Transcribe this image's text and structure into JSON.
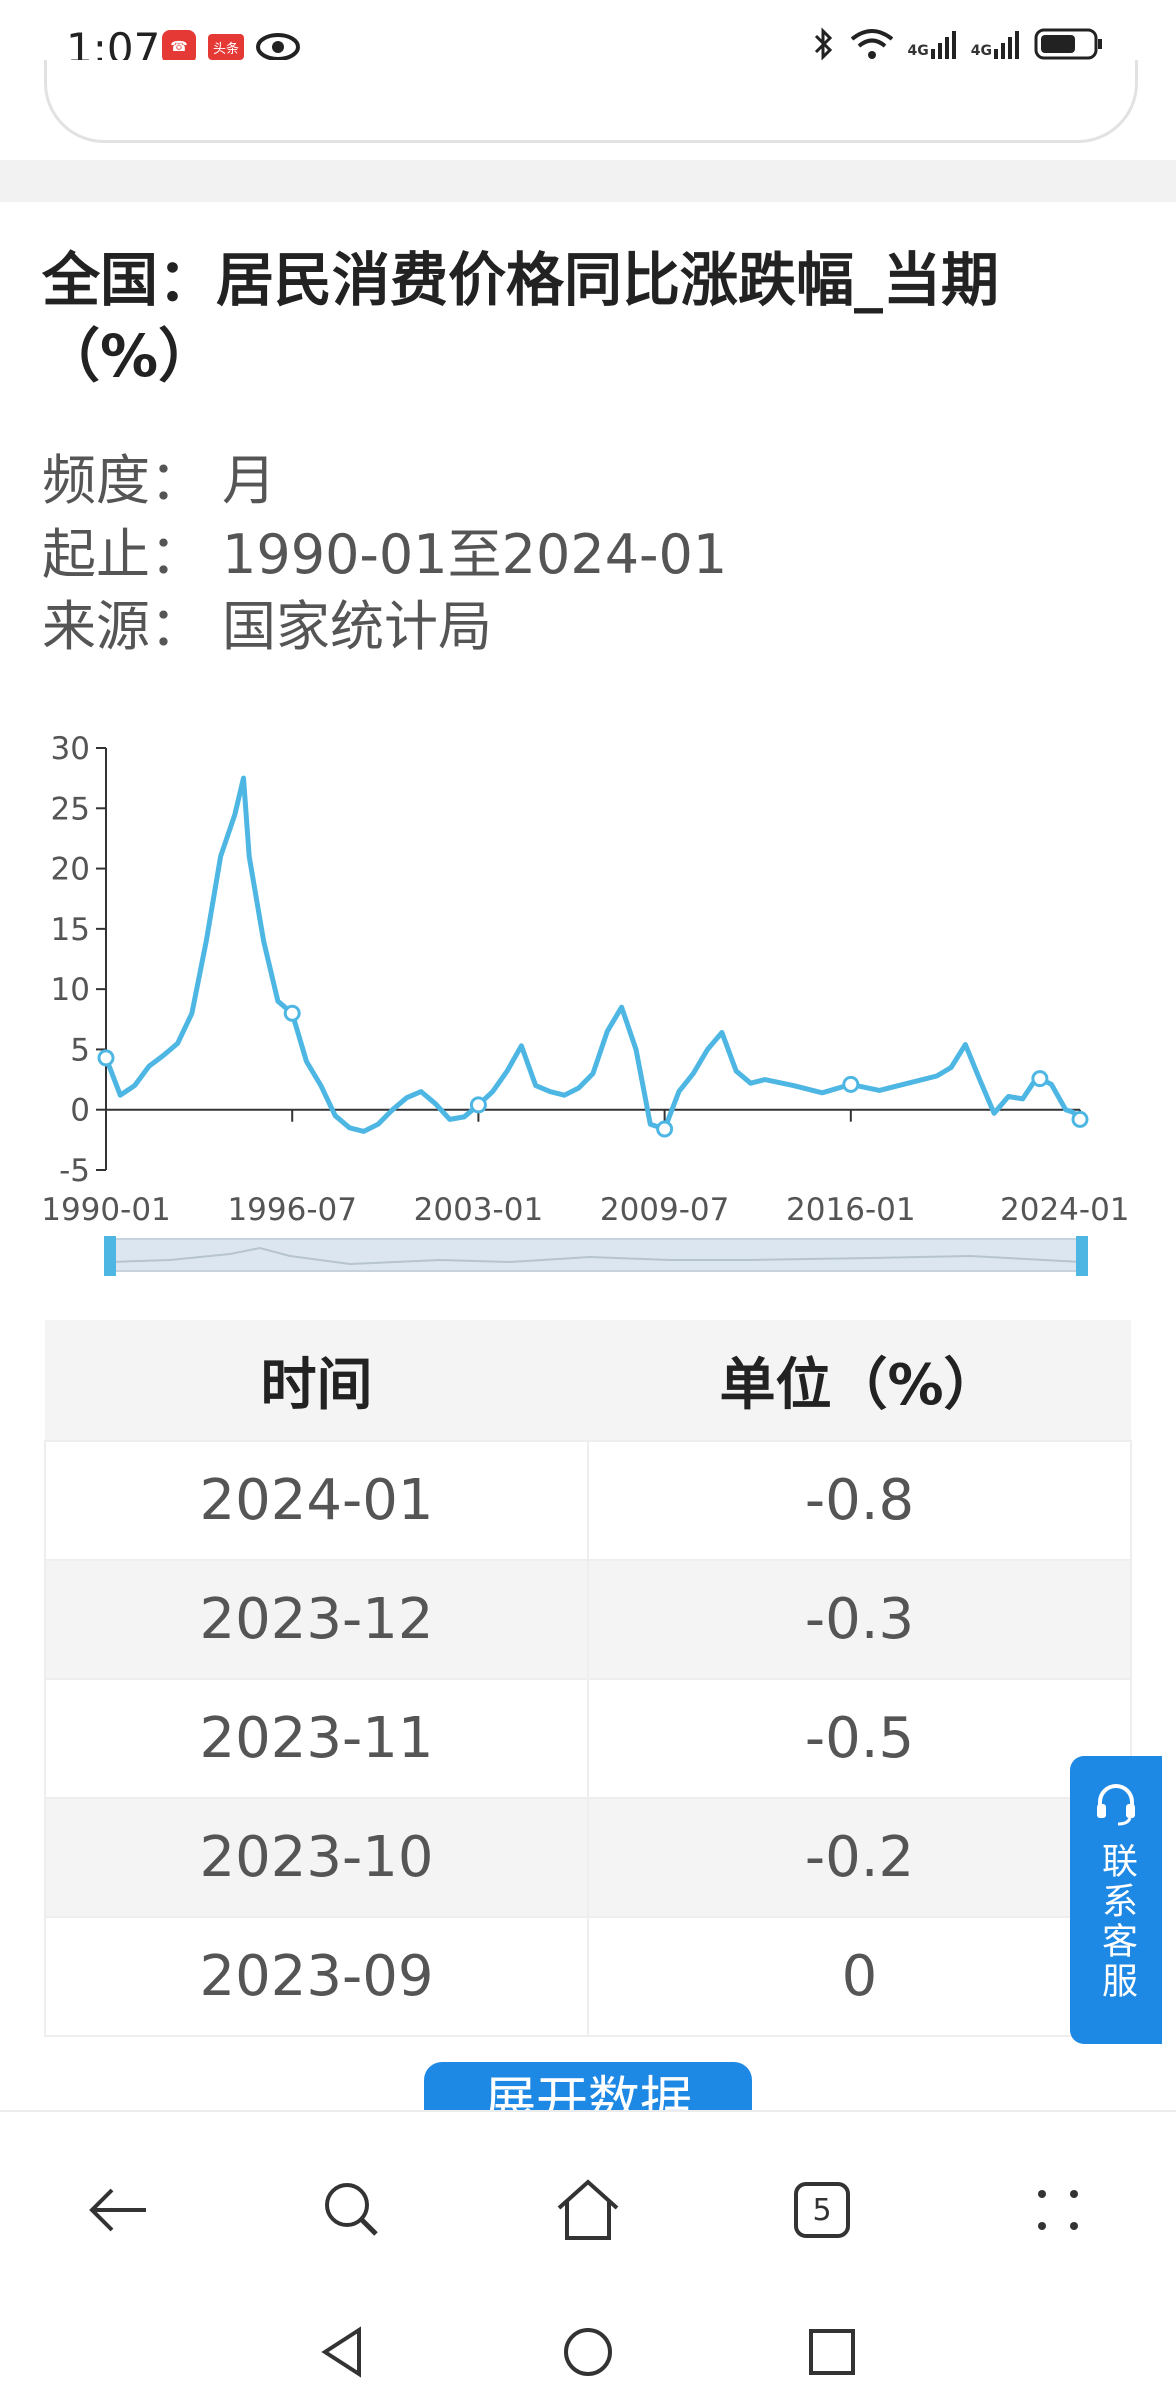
{
  "status": {
    "time": "1:07",
    "badge1": "☎",
    "badge2": "头条",
    "signal1": "4G",
    "signal2": "4G"
  },
  "title": "全国：居民消费价格同比涨跌幅_当期（%）",
  "meta": {
    "freq_label": "频度：",
    "freq_value": "月",
    "range_label": "起止：",
    "range_value": "1990-01至2024-01",
    "source_label": "来源：",
    "source_value": "国家统计局"
  },
  "chart_data": {
    "type": "line",
    "ylim": [
      -5,
      30
    ],
    "yticks": [
      "30",
      "25",
      "20",
      "15",
      "10",
      "5",
      "0",
      "-5"
    ],
    "xticks": [
      "1990-01",
      "1996-07",
      "2003-01",
      "2009-07",
      "2016-01",
      "2024-01"
    ],
    "x": [
      1990.0,
      1990.5,
      1991.0,
      1991.5,
      1992.0,
      1992.5,
      1993.0,
      1993.5,
      1994.0,
      1994.5,
      1994.8,
      1995.0,
      1995.5,
      1996.0,
      1996.5,
      1997.0,
      1997.5,
      1998.0,
      1998.5,
      1999.0,
      1999.5,
      2000.0,
      2000.5,
      2001.0,
      2001.5,
      2002.0,
      2002.5,
      2003.0,
      2003.5,
      2004.0,
      2004.5,
      2005.0,
      2005.5,
      2006.0,
      2006.5,
      2007.0,
      2007.5,
      2008.0,
      2008.5,
      2009.0,
      2009.5,
      2010.0,
      2010.5,
      2011.0,
      2011.5,
      2012.0,
      2012.5,
      2013.0,
      2014.0,
      2015.0,
      2016.0,
      2017.0,
      2018.0,
      2019.0,
      2019.5,
      2020.0,
      2020.5,
      2021.0,
      2021.5,
      2022.0,
      2022.5,
      2023.0,
      2023.5,
      2023.75,
      2024.0
    ],
    "values": [
      4.3,
      1.2,
      2.0,
      3.6,
      4.5,
      5.5,
      8.0,
      14.0,
      21.0,
      24.5,
      27.5,
      21.0,
      14.0,
      9.0,
      8.0,
      4.0,
      2.0,
      -0.5,
      -1.5,
      -1.8,
      -1.2,
      0.0,
      1.0,
      1.5,
      0.5,
      -0.8,
      -0.6,
      0.4,
      1.5,
      3.2,
      5.3,
      2.0,
      1.5,
      1.2,
      1.8,
      3.0,
      6.5,
      8.5,
      5.0,
      -1.2,
      -1.6,
      1.5,
      3.0,
      5.0,
      6.4,
      3.2,
      2.2,
      2.5,
      2.0,
      1.4,
      2.1,
      1.6,
      2.2,
      2.8,
      3.5,
      5.4,
      2.5,
      -0.3,
      1.1,
      0.9,
      2.7,
      2.1,
      0.0,
      -0.2,
      -0.8
    ],
    "markers": [
      1990.0,
      1996.5,
      2003.0,
      2009.5,
      2016.0,
      2022.6,
      2024.0
    ]
  },
  "table": {
    "headers": [
      "时间",
      "单位（%）"
    ],
    "rows": [
      [
        "2024-01",
        "-0.8"
      ],
      [
        "2023-12",
        "-0.3"
      ],
      [
        "2023-11",
        "-0.5"
      ],
      [
        "2023-10",
        "-0.2"
      ],
      [
        "2023-09",
        "0"
      ]
    ]
  },
  "expand_button": "展开数据",
  "service_button": "联系客服",
  "tabs_count": "5",
  "colors": {
    "line": "#4db6e3",
    "accent": "#1e88e5"
  }
}
